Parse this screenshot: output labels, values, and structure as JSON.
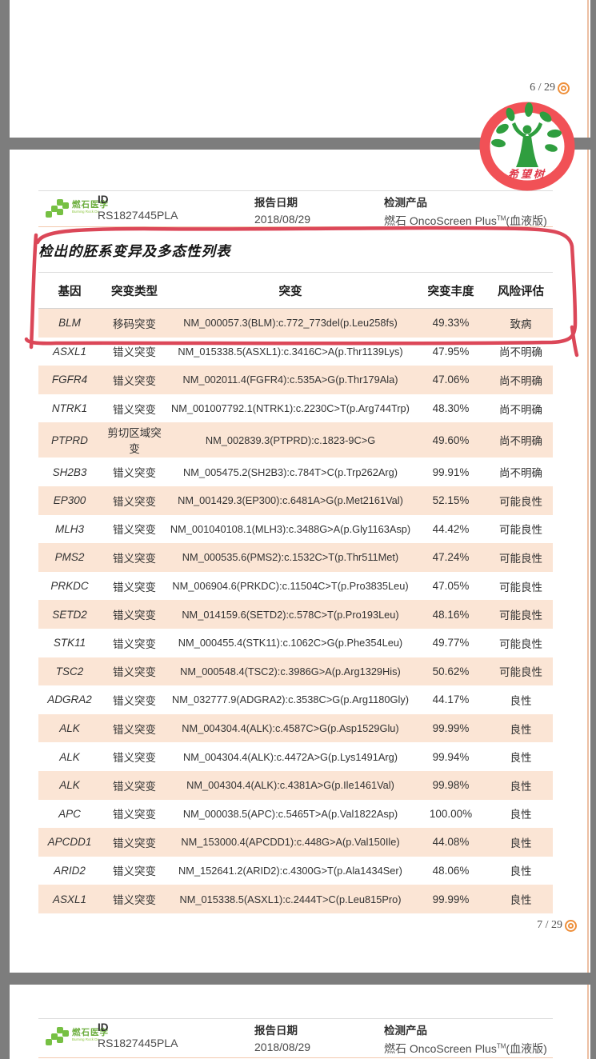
{
  "viewer": {
    "prev_page_number": "6 / 29",
    "current_page_number": "7 / 29"
  },
  "header": {
    "logo_brand": "燃石医学",
    "logo_sub": "Burning Rock Dx",
    "id_label": "ID",
    "id_value": "RS1827445PLA",
    "date_label": "报告日期",
    "date_value": "2018/08/29",
    "product_label": "检测产品",
    "product_name": "燃石 OncoScreen Plus",
    "product_tm": "TM",
    "product_suffix": "(血液版)"
  },
  "stamp": {
    "text": "希望树"
  },
  "section": {
    "title": "检出的胚系变异及多态性列表"
  },
  "table": {
    "columns": [
      "基因",
      "突变类型",
      "突变",
      "突变丰度",
      "风险评估"
    ],
    "rows": [
      {
        "gene": "BLM",
        "type": "移码突变",
        "mutation": "NM_000057.3(BLM):c.772_773del(p.Leu258fs)",
        "abundance": "49.33%",
        "risk": "致病"
      },
      {
        "gene": "ASXL1",
        "type": "错义突变",
        "mutation": "NM_015338.5(ASXL1):c.3416C>A(p.Thr1139Lys)",
        "abundance": "47.95%",
        "risk": "尚不明确"
      },
      {
        "gene": "FGFR4",
        "type": "错义突变",
        "mutation": "NM_002011.4(FGFR4):c.535A>G(p.Thr179Ala)",
        "abundance": "47.06%",
        "risk": "尚不明确"
      },
      {
        "gene": "NTRK1",
        "type": "错义突变",
        "mutation": "NM_001007792.1(NTRK1):c.2230C>T(p.Arg744Trp)",
        "abundance": "48.30%",
        "risk": "尚不明确"
      },
      {
        "gene": "PTPRD",
        "type": "剪切区域突变",
        "mutation": "NM_002839.3(PTPRD):c.1823-9C>G",
        "abundance": "49.60%",
        "risk": "尚不明确"
      },
      {
        "gene": "SH2B3",
        "type": "错义突变",
        "mutation": "NM_005475.2(SH2B3):c.784T>C(p.Trp262Arg)",
        "abundance": "99.91%",
        "risk": "尚不明确"
      },
      {
        "gene": "EP300",
        "type": "错义突变",
        "mutation": "NM_001429.3(EP300):c.6481A>G(p.Met2161Val)",
        "abundance": "52.15%",
        "risk": "可能良性"
      },
      {
        "gene": "MLH3",
        "type": "错义突变",
        "mutation": "NM_001040108.1(MLH3):c.3488G>A(p.Gly1163Asp)",
        "abundance": "44.42%",
        "risk": "可能良性"
      },
      {
        "gene": "PMS2",
        "type": "错义突变",
        "mutation": "NM_000535.6(PMS2):c.1532C>T(p.Thr511Met)",
        "abundance": "47.24%",
        "risk": "可能良性"
      },
      {
        "gene": "PRKDC",
        "type": "错义突变",
        "mutation": "NM_006904.6(PRKDC):c.11504C>T(p.Pro3835Leu)",
        "abundance": "47.05%",
        "risk": "可能良性"
      },
      {
        "gene": "SETD2",
        "type": "错义突变",
        "mutation": "NM_014159.6(SETD2):c.578C>T(p.Pro193Leu)",
        "abundance": "48.16%",
        "risk": "可能良性"
      },
      {
        "gene": "STK11",
        "type": "错义突变",
        "mutation": "NM_000455.4(STK11):c.1062C>G(p.Phe354Leu)",
        "abundance": "49.77%",
        "risk": "可能良性"
      },
      {
        "gene": "TSC2",
        "type": "错义突变",
        "mutation": "NM_000548.4(TSC2):c.3986G>A(p.Arg1329His)",
        "abundance": "50.62%",
        "risk": "可能良性"
      },
      {
        "gene": "ADGRA2",
        "type": "错义突变",
        "mutation": "NM_032777.9(ADGRA2):c.3538C>G(p.Arg1180Gly)",
        "abundance": "44.17%",
        "risk": "良性"
      },
      {
        "gene": "ALK",
        "type": "错义突变",
        "mutation": "NM_004304.4(ALK):c.4587C>G(p.Asp1529Glu)",
        "abundance": "99.99%",
        "risk": "良性"
      },
      {
        "gene": "ALK",
        "type": "错义突变",
        "mutation": "NM_004304.4(ALK):c.4472A>G(p.Lys1491Arg)",
        "abundance": "99.94%",
        "risk": "良性"
      },
      {
        "gene": "ALK",
        "type": "错义突变",
        "mutation": "NM_004304.4(ALK):c.4381A>G(p.Ile1461Val)",
        "abundance": "99.98%",
        "risk": "良性"
      },
      {
        "gene": "APC",
        "type": "错义突变",
        "mutation": "NM_000038.5(APC):c.5465T>A(p.Val1822Asp)",
        "abundance": "100.00%",
        "risk": "良性"
      },
      {
        "gene": "APCDD1",
        "type": "错义突变",
        "mutation": "NM_153000.4(APCDD1):c.448G>A(p.Val150Ile)",
        "abundance": "44.08%",
        "risk": "良性"
      },
      {
        "gene": "ARID2",
        "type": "错义突变",
        "mutation": "NM_152641.2(ARID2):c.4300G>T(p.Ala1434Ser)",
        "abundance": "48.06%",
        "risk": "良性"
      },
      {
        "gene": "ASXL1",
        "type": "错义突变",
        "mutation": "NM_015338.5(ASXL1):c.2444T>C(p.Leu815Pro)",
        "abundance": "99.99%",
        "risk": "良性"
      }
    ]
  },
  "colors": {
    "row_highlight": "#fbe5d5",
    "viewer_background": "#7d7d7d",
    "annotation_red": "#d93a4c",
    "stamp_red": "#f15156",
    "stamp_green": "#2f9e3f",
    "brand_green": "#76c043",
    "ring_orange": "#ee8f3a"
  }
}
